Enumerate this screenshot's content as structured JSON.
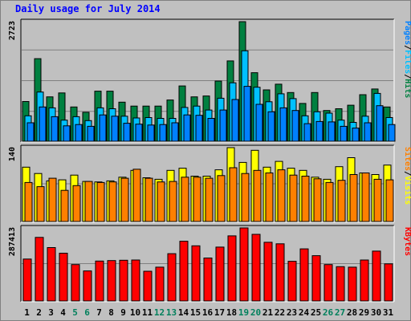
{
  "title": "Daily usage for July 2014",
  "colors": {
    "hits": "#008040",
    "files": "#00c0ff",
    "pages": "#0080ff",
    "visits": "#ffff00",
    "sites": "#ff8000",
    "kbytes": "#ff0000",
    "title": "#0000ff",
    "weekend": "#00805c",
    "panel": "#c0c0c0"
  },
  "legends": {
    "top": [
      {
        "label": "Pages",
        "color": "#0080ff"
      },
      {
        "label": "/",
        "color": "#000000"
      },
      {
        "label": "Files",
        "color": "#00c0ff"
      },
      {
        "label": "/",
        "color": "#000000"
      },
      {
        "label": "Hits",
        "color": "#008040"
      }
    ],
    "middle": [
      {
        "label": "Sites",
        "color": "#ff8000"
      },
      {
        "label": "/",
        "color": "#000000"
      },
      {
        "label": "Visits",
        "color": "#ffff00"
      }
    ],
    "bottom": [
      {
        "label": "KBytes",
        "color": "#ff0000"
      }
    ]
  },
  "chart_data": [
    {
      "type": "bar",
      "panel": "hits-files-pages",
      "categories": [
        "1",
        "2",
        "3",
        "4",
        "5",
        "6",
        "7",
        "8",
        "9",
        "10",
        "11",
        "12",
        "13",
        "14",
        "15",
        "16",
        "17",
        "18",
        "19",
        "20",
        "21",
        "22",
        "23",
        "24",
        "25",
        "26",
        "27",
        "28",
        "29",
        "30",
        "31"
      ],
      "ymax_label": "2723",
      "ylim": [
        0,
        2723
      ],
      "series": [
        {
          "name": "Hits",
          "values": [
            905,
            1880,
            1010,
            1100,
            780,
            660,
            1140,
            1140,
            890,
            800,
            800,
            800,
            940,
            1260,
            1010,
            1030,
            1370,
            1830,
            2723,
            1560,
            1170,
            1300,
            1110,
            860,
            1110,
            700,
            740,
            820,
            1060,
            1190,
            780
          ]
        },
        {
          "name": "Files",
          "values": [
            580,
            1120,
            760,
            480,
            560,
            470,
            760,
            740,
            570,
            530,
            540,
            520,
            520,
            770,
            800,
            710,
            980,
            1330,
            2060,
            1230,
            900,
            1080,
            970,
            580,
            670,
            640,
            480,
            430,
            570,
            1090,
            540
          ]
        },
        {
          "name": "Pages",
          "values": [
            420,
            780,
            560,
            350,
            380,
            340,
            600,
            570,
            410,
            390,
            370,
            380,
            420,
            600,
            590,
            520,
            710,
            950,
            1250,
            840,
            670,
            760,
            700,
            400,
            450,
            440,
            340,
            300,
            420,
            810,
            380
          ]
        }
      ],
      "grid": true
    },
    {
      "type": "bar",
      "panel": "visits-sites",
      "categories": [
        "1",
        "2",
        "3",
        "4",
        "5",
        "6",
        "7",
        "8",
        "9",
        "10",
        "11",
        "12",
        "13",
        "14",
        "15",
        "16",
        "17",
        "18",
        "19",
        "20",
        "21",
        "22",
        "23",
        "24",
        "25",
        "26",
        "27",
        "28",
        "29",
        "30",
        "31"
      ],
      "ymax_label": "140",
      "ylim": [
        0,
        140
      ],
      "series": [
        {
          "name": "Visits",
          "values": [
            103,
            91,
            77,
            79,
            88,
            76,
            75,
            77,
            84,
            97,
            83,
            80,
            97,
            101,
            86,
            86,
            98,
            140,
            112,
            135,
            103,
            114,
            101,
            97,
            84,
            80,
            104,
            121,
            92,
            89,
            107
          ]
        },
        {
          "name": "Sites",
          "values": [
            74,
            66,
            82,
            59,
            68,
            76,
            74,
            75,
            82,
            99,
            82,
            75,
            76,
            84,
            84,
            82,
            87,
            102,
            91,
            97,
            92,
            98,
            88,
            86,
            81,
            74,
            78,
            89,
            92,
            80,
            79
          ]
        }
      ],
      "grid": true
    },
    {
      "type": "bar",
      "panel": "kbytes",
      "categories": [
        "1",
        "2",
        "3",
        "4",
        "5",
        "6",
        "7",
        "8",
        "9",
        "10",
        "11",
        "12",
        "13",
        "14",
        "15",
        "16",
        "17",
        "18",
        "19",
        "20",
        "21",
        "22",
        "23",
        "24",
        "25",
        "26",
        "27",
        "28",
        "29",
        "30",
        "31"
      ],
      "ymax_label": "287413",
      "ylim": [
        0,
        287413
      ],
      "series": [
        {
          "name": "KBytes",
          "values": [
            165000,
            250000,
            210000,
            188000,
            143000,
            118000,
            157000,
            159000,
            160000,
            161000,
            117000,
            133000,
            186000,
            235000,
            217000,
            169000,
            212000,
            256000,
            287413,
            262000,
            231000,
            225000,
            156000,
            205000,
            178000,
            143000,
            135000,
            133000,
            161000,
            196000,
            146000
          ]
        }
      ],
      "grid": true
    }
  ],
  "weekend_days": [
    "5",
    "6",
    "12",
    "13",
    "19",
    "20",
    "26",
    "27"
  ]
}
